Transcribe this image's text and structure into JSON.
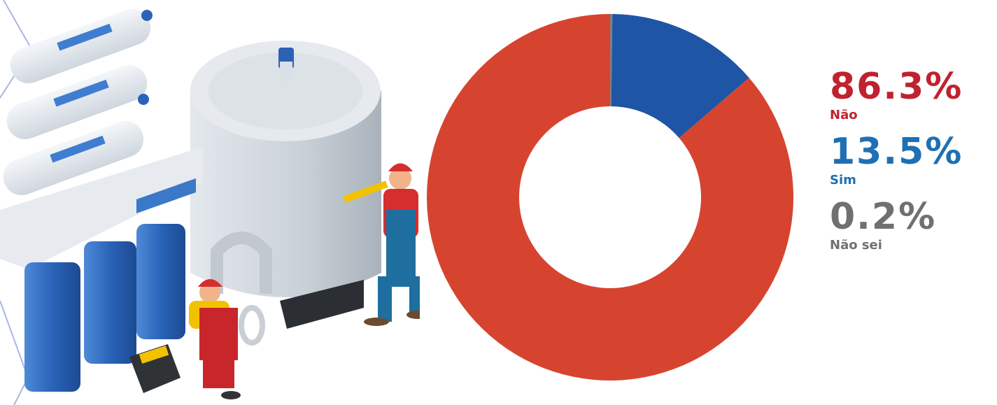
{
  "chart_data": {
    "type": "pie",
    "donut": true,
    "slices": [
      {
        "label": "Não",
        "value": 86.3,
        "display": "86.3%",
        "color": "#d64430"
      },
      {
        "label": "Sim",
        "value": 13.5,
        "display": "13.5%",
        "color": "#1f55a5"
      },
      {
        "label": "Não sei",
        "value": 0.2,
        "display": "0.2%",
        "color": "#808080"
      }
    ],
    "legend_placement": "right"
  },
  "legend_text_colors": [
    "#c0222f",
    "#1f6fb4",
    "#707070"
  ],
  "illustration": {
    "subject": "water-filtration-system-with-plumbers",
    "icons": [
      "filter-cartridge-icon",
      "water-tank-icon",
      "plumber-icon",
      "toolbox-icon"
    ]
  }
}
